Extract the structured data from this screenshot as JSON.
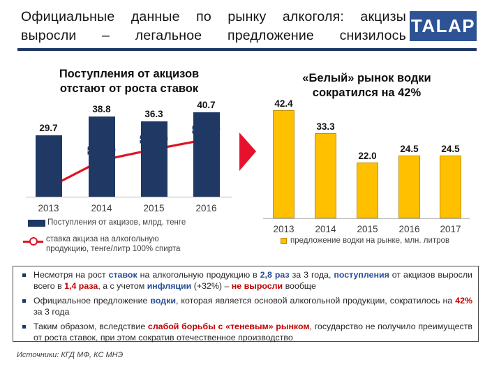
{
  "header": {
    "title_line1": "Официальные данные по рынку алкоголя: акцизы",
    "title_line2": "выросли – легальное предложение снизилось",
    "logo_text": "TALAP"
  },
  "left_chart": {
    "title_line1": "Поступления от акцизов",
    "title_line2": "отстают от роста ставок",
    "categories": [
      "2013",
      "2014",
      "2015",
      "2016"
    ],
    "bar_labels": [
      "29.7",
      "38.8",
      "36.3",
      "40.7"
    ],
    "line_labels": [
      "500",
      "1 000",
      "1 200",
      "1 380"
    ],
    "legend_bar_label": "Поступления от акцизов, млрд. тенге",
    "legend_line_label": "ставка акциза на  алкогольную продукцию, тенге/литр  100% спирта"
  },
  "right_chart": {
    "title_line1": "«Белый» рынок водки",
    "title_line2": "сократился на 42%",
    "categories": [
      "2013",
      "2014",
      "2015",
      "2016",
      "2017"
    ],
    "bar_labels": [
      "42.4",
      "33.3",
      "22.0",
      "24.5",
      "24.5"
    ],
    "legend_label": "предложение водки на рынке, млн. литров"
  },
  "chart_data": [
    {
      "type": "bar",
      "title": "Поступления от акцизов отстают от роста ставок",
      "categories": [
        "2013",
        "2014",
        "2015",
        "2016"
      ],
      "series": [
        {
          "name": "Поступления от акцизов, млрд. тенге",
          "type": "bar",
          "values": [
            29.7,
            38.8,
            36.3,
            40.7
          ]
        },
        {
          "name": "ставка акциза на алкогольную продукцию, тенге/литр 100% спирта",
          "type": "line",
          "values": [
            500,
            1000,
            1200,
            1380
          ]
        }
      ],
      "legend_position": "bottom",
      "grid": false,
      "colors": {
        "bar": "#1f3864",
        "line": "#e01322"
      }
    },
    {
      "type": "bar",
      "title": "«Белый» рынок водки сократился на 42%",
      "categories": [
        "2013",
        "2014",
        "2015",
        "2016",
        "2017"
      ],
      "series": [
        {
          "name": "предложение водки на рынке, млн. литров",
          "type": "bar",
          "values": [
            42.4,
            33.3,
            22.0,
            24.5,
            24.5
          ]
        }
      ],
      "legend_position": "bottom",
      "grid": false,
      "colors": {
        "bar": "#ffc000",
        "bar_border": "#bf8f00"
      }
    }
  ],
  "notes": {
    "bullets": [
      {
        "segments": [
          {
            "text": "Несмотря на рост ",
            "style": "normal"
          },
          {
            "text": "ставок",
            "style": "blue"
          },
          {
            "text": " на алкогольную продукцию в ",
            "style": "normal"
          },
          {
            "text": "2,8 раз",
            "style": "blue"
          },
          {
            "text": " за 3 года, ",
            "style": "normal"
          },
          {
            "text": "поступления",
            "style": "blue"
          },
          {
            "text": " от акцизов выросли всего в ",
            "style": "normal"
          },
          {
            "text": "1,4 раза",
            "style": "red"
          },
          {
            "text": ", а с учетом ",
            "style": "normal"
          },
          {
            "text": "инфляции",
            "style": "blue"
          },
          {
            "text": " (+32%) – ",
            "style": "normal"
          },
          {
            "text": "не выросли",
            "style": "red"
          },
          {
            "text": " вообще",
            "style": "normal"
          }
        ]
      },
      {
        "segments": [
          {
            "text": "Официальное предложение ",
            "style": "normal"
          },
          {
            "text": "водки",
            "style": "blue"
          },
          {
            "text": ", которая является основой алкогольной продукции, сократилось на ",
            "style": "normal"
          },
          {
            "text": "42%",
            "style": "red"
          },
          {
            "text": " за 3 года",
            "style": "normal"
          }
        ]
      },
      {
        "segments": [
          {
            "text": "Таким образом, вследствие ",
            "style": "normal"
          },
          {
            "text": "слабой борьбы с «теневым» рынком",
            "style": "red"
          },
          {
            "text": ",  государство не получило преимуществ от роста ставок, при этом сократив отечественное производство",
            "style": "normal"
          }
        ]
      }
    ]
  },
  "footer": {
    "source": "Источники: КГД МФ, КС МНЭ"
  },
  "colors": {
    "navy": "#1f3864",
    "gold": "#ffc000",
    "gold_border": "#bf8f00",
    "line_red": "#e01322",
    "arrow_red": "#e8112d",
    "accent_blue_text": "#2a4e96",
    "accent_red_text": "#c00000",
    "logo_bg": "#2e5395"
  }
}
